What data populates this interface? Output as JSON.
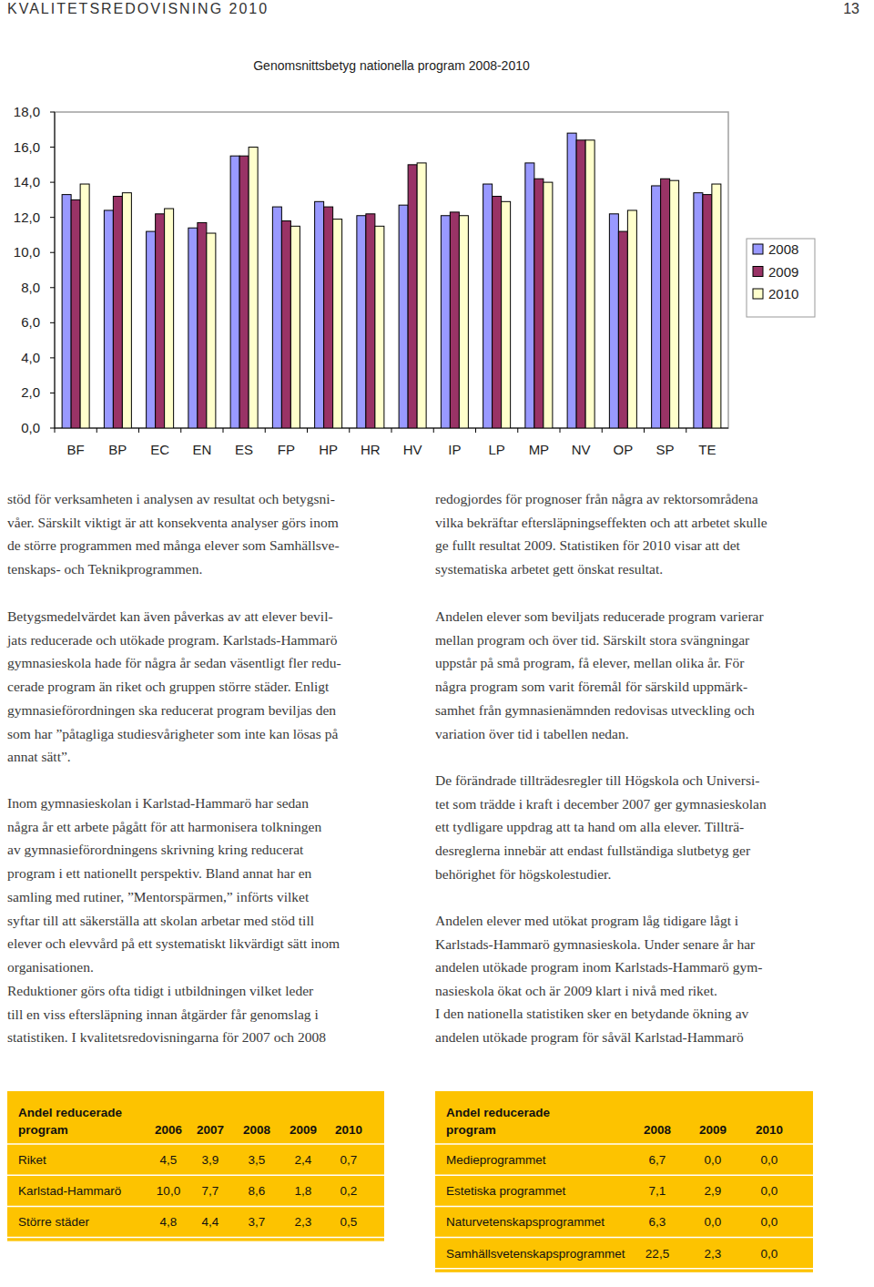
{
  "header": {
    "title": "KVALITETSREDOVISNING 2010",
    "page": "13"
  },
  "chart_data": {
    "type": "bar",
    "title": "Genomsnittsbetyg nationella program 2008-2010",
    "categories": [
      "BF",
      "BP",
      "EC",
      "EN",
      "ES",
      "FP",
      "HP",
      "HR",
      "HV",
      "IP",
      "LP",
      "MP",
      "NV",
      "OP",
      "SP",
      "TE"
    ],
    "series": [
      {
        "name": "2008",
        "color": "#9999ff",
        "values": [
          13.3,
          12.4,
          11.2,
          11.4,
          15.5,
          12.6,
          12.9,
          12.1,
          12.7,
          12.1,
          13.9,
          15.1,
          16.8,
          12.2,
          13.8,
          13.4
        ]
      },
      {
        "name": "2009",
        "color": "#993366",
        "values": [
          13.0,
          13.2,
          12.2,
          11.7,
          15.5,
          11.8,
          12.6,
          12.2,
          15.0,
          12.3,
          13.2,
          14.2,
          16.4,
          11.2,
          14.2,
          13.3
        ]
      },
      {
        "name": "2010",
        "color": "#ffffcc",
        "values": [
          13.9,
          13.4,
          12.5,
          11.1,
          16.0,
          11.5,
          11.9,
          11.5,
          15.1,
          12.1,
          12.9,
          14.0,
          16.4,
          12.4,
          14.1,
          13.9
        ]
      }
    ],
    "ylim": [
      0,
      18
    ],
    "yticks": [
      {
        "value": 0,
        "label": "0,0"
      },
      {
        "value": 2,
        "label": "2,0"
      },
      {
        "value": 4,
        "label": "4,0"
      },
      {
        "value": 6,
        "label": "6,0"
      },
      {
        "value": 8,
        "label": "8,0"
      },
      {
        "value": 10,
        "label": "10,0"
      },
      {
        "value": 12,
        "label": "12,0"
      },
      {
        "value": 14,
        "label": "14,0"
      },
      {
        "value": 16,
        "label": "16,0"
      },
      {
        "value": 18,
        "label": "18,0"
      }
    ],
    "grid": false,
    "legend": "right"
  },
  "columns": [
    {
      "paragraphs": [
        {
          "lines": [
            "stöd för verksamheten i analysen av resultat och betygsni-",
            "våer. Särskilt viktigt är att konsekventa analyser görs inom",
            "de större programmen med många elever som Samhällsve-",
            "tenskaps- och Teknikprogrammen."
          ]
        },
        {
          "lines": [
            "Betygsmedelvärdet kan även påverkas av att elever bevil-",
            "jats reducerade och utökade program. Karlstads-Hammarö",
            "gymnasieskola hade för några år sedan väsentligt fler redu-",
            "cerade program än riket och gruppen större städer. Enligt",
            "gymnasieförordningen ska reducerat program beviljas den",
            "som har ”påtagliga studiesvårigheter som inte kan lösas på",
            "annat sätt”."
          ]
        },
        {
          "lines": [
            "Inom gymnasieskolan i Karlstad-Hammarö har sedan",
            "några år ett arbete pågått för att harmonisera tolkningen",
            "av gymnasieförordningens skrivning kring reducerat",
            "program i ett nationellt perspektiv. Bland annat har en",
            "samling med rutiner, ”Mentorspärmen,” införts vilket",
            "syftar till att säkerställa att skolan arbetar med stöd till",
            "elever och elevvård på ett systematiskt likvärdigt sätt inom",
            "organisationen."
          ]
        },
        {
          "lines": [
            "Reduktioner görs ofta tidigt i utbildningen vilket leder",
            "till en viss eftersläpning innan åtgärder får genomslag i",
            "statistiken. I kvalitetsredovisningarna för 2007  och 2008"
          ]
        }
      ]
    },
    {
      "paragraphs": [
        {
          "lines": [
            "redogjordes för prognoser från några av rektorsområdena",
            "vilka bekräftar eftersläpningseffekten och att arbetet skulle",
            "ge fullt resultat 2009. Statistiken för 2010 visar att det",
            "systematiska arbetet gett önskat resultat."
          ]
        },
        {
          "lines": [
            "Andelen elever som beviljats reducerade program varierar",
            "mellan program och över tid. Särskilt stora svängningar",
            "uppstår på små program, få elever, mellan olika år. För",
            "några program som varit föremål för särskild uppmärk-",
            "samhet från gymnasienämnden redovisas utveckling och",
            "variation över tid i tabellen nedan."
          ]
        },
        {
          "lines": [
            "De förändrade tillträdesregler till Högskola och Universi-",
            "tet som trädde i kraft i december 2007 ger gymnasieskolan",
            "ett tydligare uppdrag att ta hand om alla elever. Tillträ-",
            "desreglerna innebär att endast fullständiga slutbetyg ger",
            "behörighet för högskolestudier."
          ]
        },
        {
          "lines": [
            "Andelen elever med utökat program låg tidigare lågt i",
            "Karlstads-Hammarö gymnasieskola. Under senare år har",
            "andelen utökade program inom Karlstads-Hammarö gym-",
            "nasieskola ökat och är 2009 klart i nivå med riket."
          ]
        },
        {
          "lines": [
            "I den nationella statistiken sker en betydande ökning av",
            "andelen utökade program för såväl Karlstad-Hammarö"
          ]
        }
      ]
    }
  ],
  "tables": [
    {
      "title_lines": [
        "Andel reducerade",
        "program"
      ],
      "columns": [
        "2006",
        "2007",
        "2008",
        "2009",
        "2010"
      ],
      "rows": [
        {
          "label": "Riket",
          "values": [
            "4,5",
            "3,9",
            "3,5",
            "2,4",
            "0,7"
          ]
        },
        {
          "label": "Karlstad-Hammarö",
          "values": [
            "10,0",
            "7,7",
            "8,6",
            "1,8",
            "0,2"
          ]
        },
        {
          "label": "Större städer",
          "values": [
            "4,8",
            "4,4",
            "3,7",
            "2,3",
            "0,5"
          ]
        }
      ]
    },
    {
      "title_lines": [
        "Andel reducerade",
        "program"
      ],
      "columns": [
        "2008",
        "2009",
        "2010"
      ],
      "rows": [
        {
          "label": "Medieprogrammet",
          "values": [
            "6,7",
            "0,0",
            "0,0"
          ]
        },
        {
          "label": "Estetiska programmet",
          "values": [
            "7,1",
            "2,9",
            "0,0"
          ]
        },
        {
          "label": "Naturvetenskapsprogrammet",
          "values": [
            "6,3",
            "0,0",
            "0,0"
          ]
        },
        {
          "label": "Samhällsvetenskapsprogrammet",
          "values": [
            "22,5",
            "2,3",
            "0,0"
          ]
        }
      ]
    }
  ]
}
